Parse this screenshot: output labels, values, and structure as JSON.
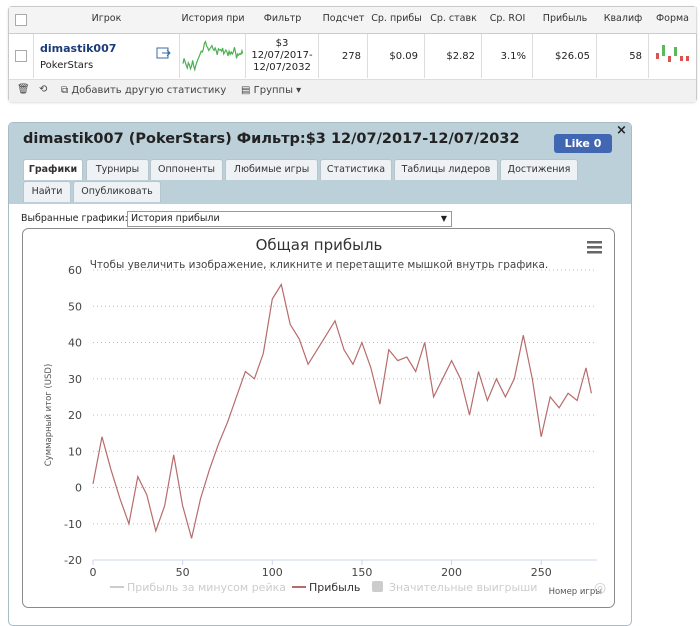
{
  "table": {
    "headers": [
      "Игрок",
      "История при",
      "Фильтр",
      "Подсчет",
      "Ср. прибы",
      "Ср. ставк",
      "Ср. ROI",
      "Прибыль",
      "Квалиф",
      "Форма"
    ],
    "row": {
      "player": "dimastik007",
      "site": "PokerStars",
      "filter": "$3 12/07/2017-12/07/2032",
      "count": 278,
      "avg_profit": "$0.09",
      "avg_stake": "$2.82",
      "roi": "3.1%",
      "profit": "$26.05",
      "qualifier": 58
    },
    "toolbar": {
      "add": "Добавить другую статистику",
      "groups": "Группы"
    }
  },
  "panel": {
    "title": "dimastik007 (PokerStars) Фильтр:$3 12/07/2017-12/07/2032",
    "like": "Like 0",
    "tabs": [
      "Графики",
      "Турниры",
      "Оппоненты",
      "Любимые игры",
      "Статистика",
      "Таблицы лидеров",
      "Достижения",
      "Найти",
      "Опубликовать"
    ],
    "select_label": "Выбранные графики:",
    "select_value": "История прибыли"
  },
  "chart_data": {
    "type": "line",
    "title": "Общая прибыль",
    "subtitle": "Чтобы увеличить изображение, кликните и перетащите мышкой внутрь графика.",
    "y_label": "Суммарный итог (USD)",
    "x_label": "Номер игры",
    "x": [
      0,
      5,
      10,
      15,
      20,
      25,
      30,
      35,
      40,
      45,
      50,
      55,
      60,
      65,
      70,
      75,
      80,
      85,
      90,
      95,
      100,
      105,
      110,
      115,
      120,
      125,
      130,
      135,
      140,
      145,
      150,
      155,
      160,
      165,
      170,
      175,
      180,
      185,
      190,
      195,
      200,
      205,
      210,
      215,
      220,
      225,
      230,
      235,
      240,
      245,
      250,
      255,
      260,
      265,
      270,
      275,
      278
    ],
    "series": [
      {
        "name": "Прибыль за минусом рейка",
        "color": "#cccccc",
        "visible": false
      },
      {
        "name": "Прибыль",
        "color": "#b86b6b",
        "visible": true,
        "values": [
          1,
          14,
          5,
          -3,
          -10,
          3,
          -2,
          -12,
          -5,
          9,
          -5,
          -14,
          -3,
          5,
          12,
          18,
          25,
          32,
          30,
          37,
          52,
          56,
          45,
          41,
          34,
          38,
          42,
          46,
          38,
          34,
          40,
          33,
          23,
          38,
          35,
          36,
          32,
          40,
          25,
          30,
          35,
          30,
          20,
          32,
          24,
          30,
          25,
          30,
          42,
          30,
          14,
          25,
          22,
          26,
          24,
          33,
          26
        ]
      },
      {
        "name": "Значительные выигрыши",
        "color": "#cccccc",
        "visible": false
      }
    ],
    "xlim": [
      0,
      280
    ],
    "xticks": [
      0,
      50,
      100,
      150,
      200,
      250
    ],
    "ylim": [
      -20,
      60
    ],
    "yticks": [
      -20,
      -10,
      0,
      10,
      20,
      30,
      40,
      50,
      60
    ],
    "grid": true
  }
}
